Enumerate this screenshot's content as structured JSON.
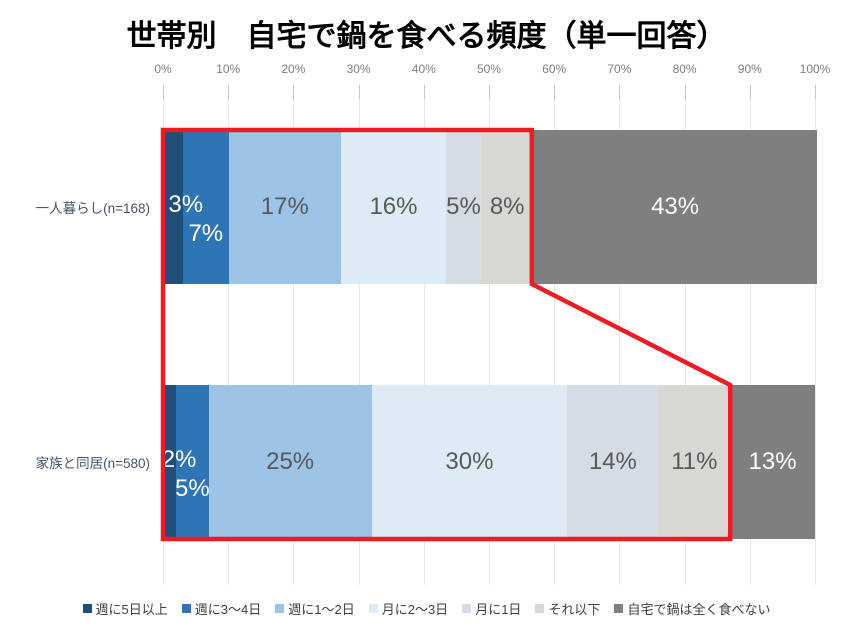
{
  "title": "世帯別　自宅で鍋を食べる頻度（単一回答）",
  "chart_data": {
    "type": "bar",
    "orientation": "horizontal",
    "stacked": true,
    "title": "世帯別　自宅で鍋を食べる頻度（単一回答）",
    "categories": [
      "一人暮らし(n=168)",
      "家族と同居(n=580)"
    ],
    "series": [
      {
        "name": "週に5日以上",
        "color": "#1F4E79",
        "values": [
          3,
          2
        ]
      },
      {
        "name": "週に3～4日",
        "color": "#2E75B6",
        "values": [
          7,
          5
        ]
      },
      {
        "name": "週に1～2日",
        "color": "#9DC3E6",
        "values": [
          17,
          25
        ]
      },
      {
        "name": "月に2～3日",
        "color": "#DEEBF7",
        "values": [
          16,
          30
        ]
      },
      {
        "name": "月に1日",
        "color": "#D6DCE5",
        "values": [
          5,
          14
        ]
      },
      {
        "name": "それ以下",
        "color": "#D9D7D3",
        "values": [
          8,
          11
        ]
      },
      {
        "name": "自宅で鍋は全く食べない",
        "color": "#7F7F7F",
        "values": [
          43,
          13
        ]
      }
    ],
    "value_suffix": "%",
    "x_axis": {
      "ticks": [
        "0%",
        "10%",
        "20%",
        "30%",
        "40%",
        "50%",
        "60%",
        "70%",
        "80%",
        "90%",
        "100%"
      ],
      "range": [
        0,
        100
      ]
    },
    "grid": true,
    "legend_position": "bottom",
    "highlight": {
      "color": "#ED1C24",
      "covers": "全セグメント（自宅で鍋は全く食べない を除く）",
      "extent_percent": [
        56,
        87
      ]
    }
  }
}
